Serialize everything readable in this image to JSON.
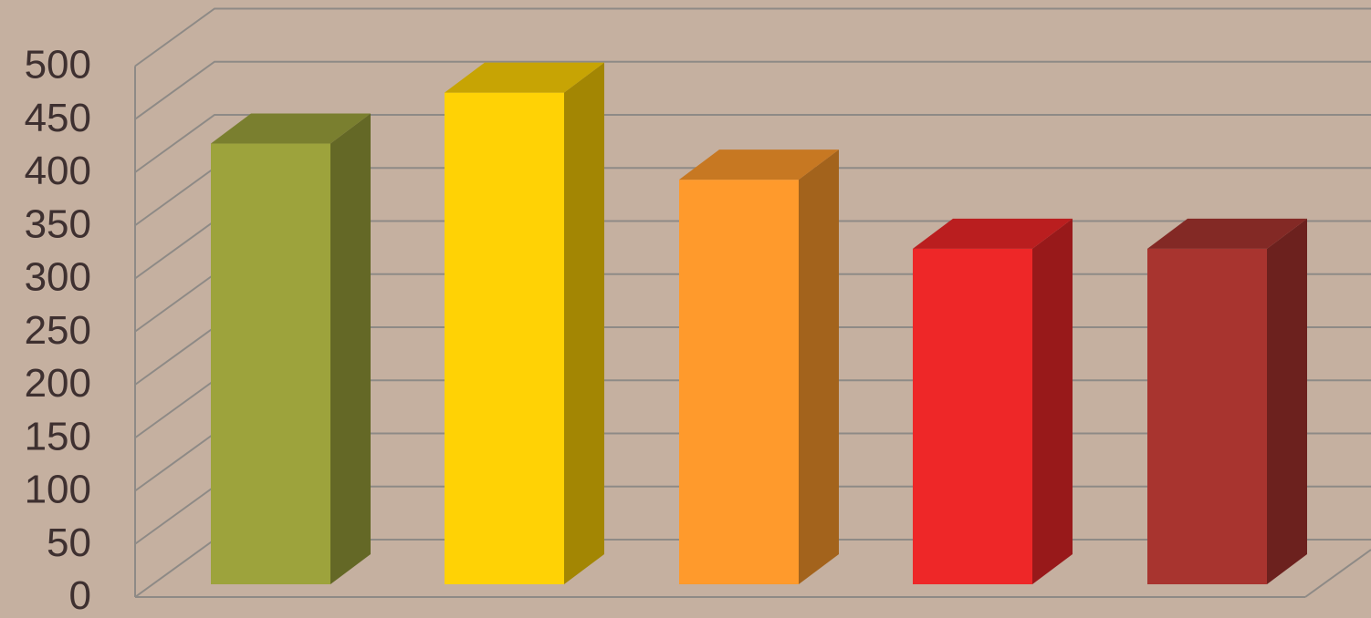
{
  "chart_data": {
    "type": "bar",
    "title": "",
    "xlabel": "",
    "ylabel": "",
    "ylim": [
      0,
      500
    ],
    "yticks": [
      0,
      50,
      100,
      150,
      200,
      250,
      300,
      350,
      400,
      450,
      500
    ],
    "grid": true,
    "style": "3d-columns",
    "values": [
      415,
      463,
      381,
      316,
      316
    ],
    "colors": [
      "#9da33c",
      "#ffd205",
      "#ff9a2c",
      "#ee2728",
      "#a8342f"
    ],
    "background": "#c5b0a0"
  }
}
